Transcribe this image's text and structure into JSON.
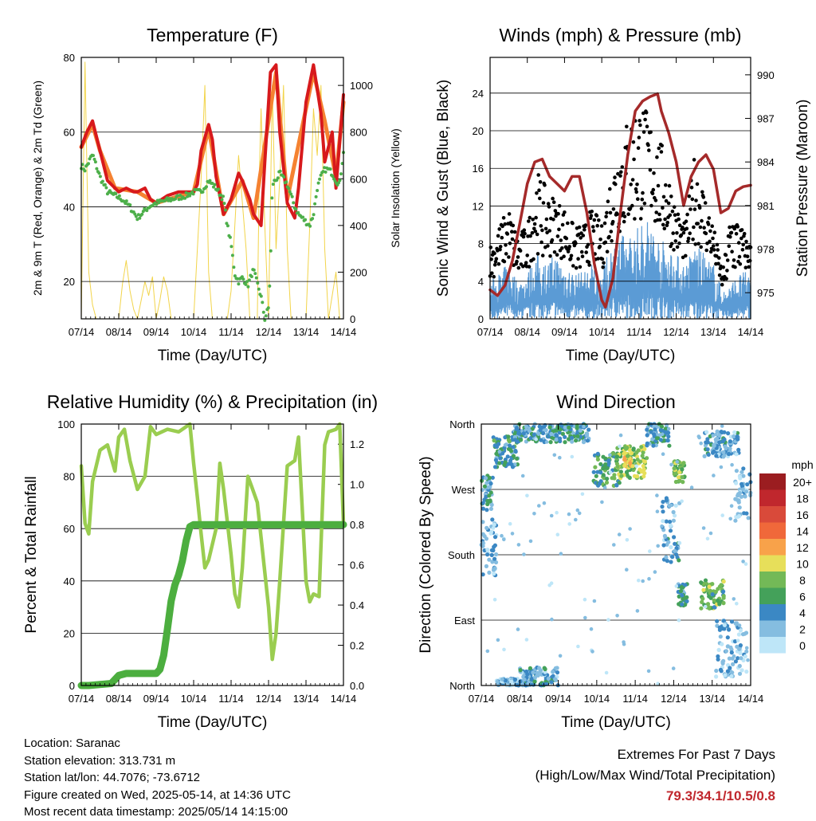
{
  "colors": {
    "temp2m": "#d7191c",
    "temp9m": "#f58231",
    "dewpoint": "#4daf4a",
    "solar": "#f2d44a",
    "wind": "#5b9bd5",
    "gust": "#000000",
    "pressure": "#a52a2a",
    "rh": "#9acd50",
    "precip": "#4cae3f",
    "extremes_text": "#c0272d"
  },
  "chart_data": [
    {
      "type": "line",
      "title": "Temperature (F)",
      "xlabel": "Time (Day/UTC)",
      "ylabel": "2m & 9m T (Red, Orange) & 2m Td (Green)",
      "y2label": "Solar Insolation (Yellow)",
      "x_ticks": [
        "07/14",
        "08/14",
        "09/14",
        "10/14",
        "11/14",
        "12/14",
        "13/14",
        "14/14"
      ],
      "ylim": [
        10,
        80
      ],
      "y_ticks": [
        20,
        40,
        60,
        80
      ],
      "y2lim": [
        0,
        1120
      ],
      "y2_ticks": [
        0,
        200,
        400,
        600,
        800,
        1000
      ],
      "grid": true,
      "series": [
        {
          "key": "t2m",
          "x": [
            0,
            0.15,
            0.3,
            0.5,
            0.7,
            0.9,
            1.0,
            1.2,
            1.4,
            1.5,
            1.7,
            1.85,
            2.0,
            2.3,
            2.6,
            2.9,
            3.0,
            3.1,
            3.2,
            3.4,
            3.5,
            3.6,
            3.8,
            4.0,
            4.2,
            4.3,
            4.5,
            4.6,
            4.8,
            4.9,
            5.05,
            5.2,
            5.3,
            5.5,
            5.7,
            5.8,
            6.0,
            6.2,
            6.4,
            6.5,
            6.7,
            6.8,
            7.0
          ],
          "values": [
            56,
            60,
            63,
            55,
            47,
            45,
            44,
            45,
            44,
            44,
            45,
            42,
            41,
            43,
            44,
            44,
            44,
            46,
            55,
            62,
            58,
            48,
            38,
            42,
            49,
            47,
            42,
            38,
            35,
            52,
            76,
            78,
            60,
            41,
            37,
            45,
            68,
            78,
            65,
            52,
            60,
            45,
            70
          ]
        },
        {
          "key": "t9m",
          "x": [
            0,
            0.3,
            0.5,
            0.9,
            1.5,
            2.0,
            3.0,
            3.4,
            3.8,
            4.3,
            4.6,
            5.2,
            5.5,
            6.2,
            6.5,
            6.8,
            7.0
          ],
          "values": [
            56,
            62,
            55,
            45,
            44,
            41,
            44,
            61,
            38,
            47,
            37,
            76,
            42,
            76,
            63,
            48,
            68
          ]
        },
        {
          "key": "td",
          "x": [
            0,
            0.1,
            0.3,
            0.5,
            0.7,
            0.9,
            1.1,
            1.3,
            1.5,
            1.8,
            2.0,
            2.4,
            2.8,
            3.0,
            3.2,
            3.4,
            3.6,
            3.8,
            3.9,
            4.0,
            4.1,
            4.2,
            4.3,
            4.45,
            4.55,
            4.6,
            4.8,
            4.9,
            5.0,
            5.05,
            5.1,
            5.25,
            5.3,
            5.5,
            5.7,
            5.8,
            5.9,
            6.0,
            6.1,
            6.2,
            6.3,
            6.4,
            6.5,
            6.6,
            6.7,
            6.8,
            6.9,
            7.0
          ],
          "values": [
            51,
            50,
            54,
            48,
            44,
            43,
            42,
            40,
            37,
            40,
            41,
            42,
            43,
            44,
            44,
            47,
            45,
            42,
            35,
            30,
            22,
            20,
            21,
            19,
            22,
            23,
            16,
            10,
            13,
            24,
            46,
            48,
            49,
            46,
            40,
            38,
            37,
            36,
            35,
            38,
            45,
            48,
            50,
            50,
            49,
            47,
            46,
            55
          ]
        },
        {
          "key": "solar",
          "x": [
            0,
            0.1,
            0.2,
            0.3,
            0.4,
            0.5,
            0.6,
            0.8,
            0.9,
            1.0,
            1.1,
            1.2,
            1.3,
            1.4,
            1.5,
            1.6,
            1.7,
            1.8,
            1.9,
            2.0,
            2.1,
            2.2,
            2.3,
            2.4,
            2.5,
            2.6,
            2.7,
            2.8,
            2.9,
            3.0,
            3.1,
            3.2,
            3.3,
            3.4,
            3.5,
            3.6,
            3.8,
            3.9,
            4.0,
            4.1,
            4.2,
            4.3,
            4.4,
            4.5,
            4.6,
            4.7,
            4.75,
            4.8,
            4.9,
            5.0,
            5.1,
            5.2,
            5.3,
            5.4,
            5.5,
            5.6,
            5.8,
            5.9,
            6.0,
            6.1,
            6.2,
            6.3,
            6.4,
            6.5,
            6.6,
            6.8,
            6.9,
            7.0
          ],
          "values": [
            0,
            1100,
            200,
            60,
            0,
            0,
            0,
            0,
            0,
            0,
            150,
            250,
            120,
            40,
            0,
            80,
            160,
            100,
            180,
            0,
            80,
            180,
            120,
            0,
            0,
            0,
            0,
            0,
            0,
            0,
            300,
            600,
            1000,
            200,
            0,
            0,
            0,
            0,
            120,
            400,
            700,
            500,
            300,
            0,
            0,
            0,
            600,
            900,
            400,
            0,
            1000,
            300,
            600,
            1000,
            300,
            0,
            0,
            0,
            0,
            400,
            900,
            700,
            1000,
            300,
            0,
            200,
            0,
            0
          ]
        }
      ]
    },
    {
      "type": "scatter",
      "title": "Winds (mph) & Pressure (mb)",
      "xlabel": "Time (Day/UTC)",
      "ylabel": "Sonic Wind & Gust (Blue, Black)",
      "y2label": "Station Pressure (Maroon)",
      "x_ticks": [
        "07/14",
        "08/14",
        "09/14",
        "10/14",
        "11/14",
        "12/14",
        "13/14",
        "14/14"
      ],
      "ylim": [
        0,
        27.8
      ],
      "y_ticks": [
        0,
        4,
        8,
        12,
        16,
        20,
        24
      ],
      "y2lim": [
        973.2,
        991.2
      ],
      "y2_ticks": [
        975,
        978,
        981,
        984,
        987,
        990
      ],
      "grid": true,
      "wind_envelope": {
        "x": [
          0,
          0.25,
          0.5,
          0.75,
          1,
          1.25,
          1.5,
          1.75,
          2,
          2.25,
          2.5,
          2.75,
          3,
          3.25,
          3.5,
          3.75,
          4,
          4.25,
          4.5,
          4.75,
          5,
          5.25,
          5.5,
          5.75,
          6,
          6.25,
          6.5,
          6.75,
          7
        ],
        "values": [
          4,
          5,
          6,
          4,
          5,
          7,
          6,
          7,
          6,
          5,
          5,
          6,
          5,
          8,
          9,
          9,
          10,
          11,
          9,
          8,
          7,
          6,
          8,
          7,
          6,
          3,
          4,
          5,
          5
        ]
      },
      "gust_envelope": {
        "x": [
          0,
          0.25,
          0.5,
          0.75,
          1,
          1.25,
          1.5,
          1.75,
          2,
          2.25,
          2.5,
          2.75,
          3,
          3.25,
          3.5,
          3.75,
          4,
          4.25,
          4.5,
          4.75,
          5,
          5.25,
          5.5,
          5.75,
          6,
          6.25,
          6.5,
          6.75,
          7
        ],
        "values": [
          8,
          10,
          12,
          9,
          10,
          16,
          14,
          13,
          12,
          10,
          10,
          12,
          10,
          16,
          20,
          22,
          24,
          22,
          20,
          17,
          12,
          10,
          18,
          14,
          10,
          5,
          13,
          10,
          8
        ]
      },
      "series": [
        {
          "key": "pressure",
          "x": [
            0,
            0.2,
            0.4,
            0.6,
            0.8,
            1.0,
            1.2,
            1.4,
            1.6,
            1.8,
            2.0,
            2.2,
            2.4,
            2.6,
            2.8,
            3.0,
            3.1,
            3.3,
            3.5,
            3.7,
            3.9,
            4.1,
            4.3,
            4.5,
            4.6,
            4.8,
            5.0,
            5.2,
            5.4,
            5.6,
            5.8,
            6.0,
            6.2,
            6.4,
            6.6,
            6.8,
            7.0
          ],
          "values": [
            975.2,
            974.8,
            975.5,
            977.2,
            979.8,
            982.5,
            984.0,
            984.2,
            983.0,
            982.5,
            982.0,
            983.0,
            983.0,
            980.5,
            977.0,
            974.5,
            974.0,
            976.0,
            980.5,
            984.5,
            987.5,
            988.2,
            988.5,
            988.7,
            987.5,
            986.0,
            984.0,
            981.0,
            983.0,
            984.0,
            984.5,
            983.5,
            980.5,
            980.8,
            982.0,
            982.3,
            982.4
          ]
        }
      ]
    },
    {
      "type": "line",
      "title": "Relative Humidity (%) & Precipitation (in)",
      "xlabel": "Time (Day/UTC)",
      "ylabel": "Percent & Total Rainfall",
      "x_ticks": [
        "07/14",
        "08/14",
        "09/14",
        "10/14",
        "11/14",
        "12/14",
        "13/14",
        "14/14"
      ],
      "ylim": [
        0,
        100
      ],
      "y_ticks": [
        0,
        20,
        40,
        60,
        80,
        100
      ],
      "y2lim": [
        0,
        1.3
      ],
      "y2_ticks": [
        "0.0",
        "0.2",
        "0.4",
        "0.6",
        "0.8",
        "1.0",
        "1.2"
      ],
      "grid": true,
      "series": [
        {
          "key": "rh",
          "x": [
            0,
            0.1,
            0.2,
            0.3,
            0.5,
            0.7,
            0.9,
            1.0,
            1.15,
            1.3,
            1.5,
            1.7,
            1.85,
            2.0,
            2.3,
            2.6,
            2.9,
            3.0,
            3.1,
            3.2,
            3.3,
            3.4,
            3.6,
            3.7,
            3.8,
            4.0,
            4.1,
            4.2,
            4.3,
            4.45,
            4.55,
            4.7,
            5.0,
            5.1,
            5.2,
            5.3,
            5.5,
            5.7,
            5.8,
            6.0,
            6.1,
            6.2,
            6.35,
            6.5,
            6.6,
            6.8,
            6.9,
            7.0
          ],
          "values": [
            84,
            62,
            58,
            78,
            90,
            92,
            82,
            95,
            98,
            86,
            75,
            80,
            99,
            96,
            98,
            97,
            100,
            85,
            72,
            58,
            45,
            48,
            60,
            85,
            75,
            50,
            35,
            30,
            45,
            80,
            76,
            70,
            30,
            10,
            20,
            40,
            84,
            86,
            95,
            40,
            32,
            35,
            34,
            92,
            97,
            98,
            100,
            62
          ]
        },
        {
          "key": "precip",
          "x": [
            0,
            0.2,
            0.8,
            1.0,
            1.2,
            1.8,
            2.0,
            2.1,
            2.2,
            2.3,
            2.4,
            2.5,
            2.6,
            2.7,
            2.8,
            2.9,
            3.0,
            7.0
          ],
          "values": [
            0,
            0,
            0.01,
            0.05,
            0.06,
            0.06,
            0.06,
            0.08,
            0.15,
            0.28,
            0.42,
            0.5,
            0.55,
            0.62,
            0.72,
            0.79,
            0.8,
            0.8
          ]
        }
      ]
    },
    {
      "type": "scatter",
      "title": "Wind Direction",
      "xlabel": "Time (Day/UTC)",
      "ylabel": "Direction (Colored By Speed)",
      "x_ticks": [
        "07/14",
        "08/14",
        "09/14",
        "10/14",
        "11/14",
        "12/14",
        "13/14",
        "14/14"
      ],
      "y_ticks": [
        "North",
        "East",
        "South",
        "West",
        "North"
      ],
      "ylim": [
        0,
        360
      ],
      "grid": true,
      "clusters": [
        {
          "x0": 0,
          "x1": 0.4,
          "d0": 150,
          "d1": 230,
          "speed": 2
        },
        {
          "x0": 0,
          "x1": 0.3,
          "d0": 240,
          "d1": 290,
          "speed": 4
        },
        {
          "x0": 0.3,
          "x1": 1.0,
          "d0": 300,
          "d1": 345,
          "speed": 5
        },
        {
          "x0": 0.8,
          "x1": 2.8,
          "d0": 335,
          "d1": 360,
          "speed": 4
        },
        {
          "x0": 1.0,
          "x1": 2.0,
          "d0": 0,
          "d1": 25,
          "speed": 3
        },
        {
          "x0": 0.4,
          "x1": 1.1,
          "d0": 0,
          "d1": 10,
          "speed": 2
        },
        {
          "x0": 2.9,
          "x1": 3.6,
          "d0": 275,
          "d1": 320,
          "speed": 6
        },
        {
          "x0": 3.5,
          "x1": 4.3,
          "d0": 285,
          "d1": 330,
          "speed": 8
        },
        {
          "x0": 3.7,
          "x1": 3.95,
          "d0": 300,
          "d1": 320,
          "speed": 10
        },
        {
          "x0": 4.3,
          "x1": 4.9,
          "d0": 330,
          "d1": 360,
          "speed": 4
        },
        {
          "x0": 4.7,
          "x1": 5.15,
          "d0": 170,
          "d1": 260,
          "speed": 3
        },
        {
          "x0": 5.0,
          "x1": 5.3,
          "d0": 280,
          "d1": 310,
          "speed": 7
        },
        {
          "x0": 5.1,
          "x1": 5.35,
          "d0": 110,
          "d1": 140,
          "speed": 5
        },
        {
          "x0": 5.7,
          "x1": 6.3,
          "d0": 105,
          "d1": 145,
          "speed": 7
        },
        {
          "x0": 5.8,
          "x1": 6.7,
          "d0": 315,
          "d1": 350,
          "speed": 3
        },
        {
          "x0": 6.6,
          "x1": 7.0,
          "d0": 225,
          "d1": 300,
          "speed": 2
        },
        {
          "x0": 6.1,
          "x1": 6.9,
          "d0": 10,
          "d1": 90,
          "speed": 2
        }
      ],
      "legend": {
        "unit": "mph",
        "labels": [
          "20+",
          "18",
          "16",
          "14",
          "12",
          "10",
          "8",
          "6",
          "4",
          "2",
          "0"
        ],
        "colors": [
          "#9b1d20",
          "#c0272d",
          "#d94a3a",
          "#f0683a",
          "#f8a24a",
          "#e7df5a",
          "#73b957",
          "#44a15a",
          "#3b88c4",
          "#85bde0",
          "#bee6f8"
        ]
      }
    }
  ],
  "info": {
    "location": "Location: Saranac",
    "elevation": "Station elevation: 313.731 m",
    "latlon": "Station lat/lon: 44.7076; -73.6712",
    "created": "Figure created on Wed, 2025-05-14, at 14:36 UTC",
    "recent": "Most recent data timestamp: 2025/05/14 14:15:00"
  },
  "extremes": {
    "line1": "Extremes For Past 7 Days",
    "line2": "(High/Low/Max Wind/Total Precipitation)",
    "values": "79.3/34.1/10.5/0.8"
  }
}
